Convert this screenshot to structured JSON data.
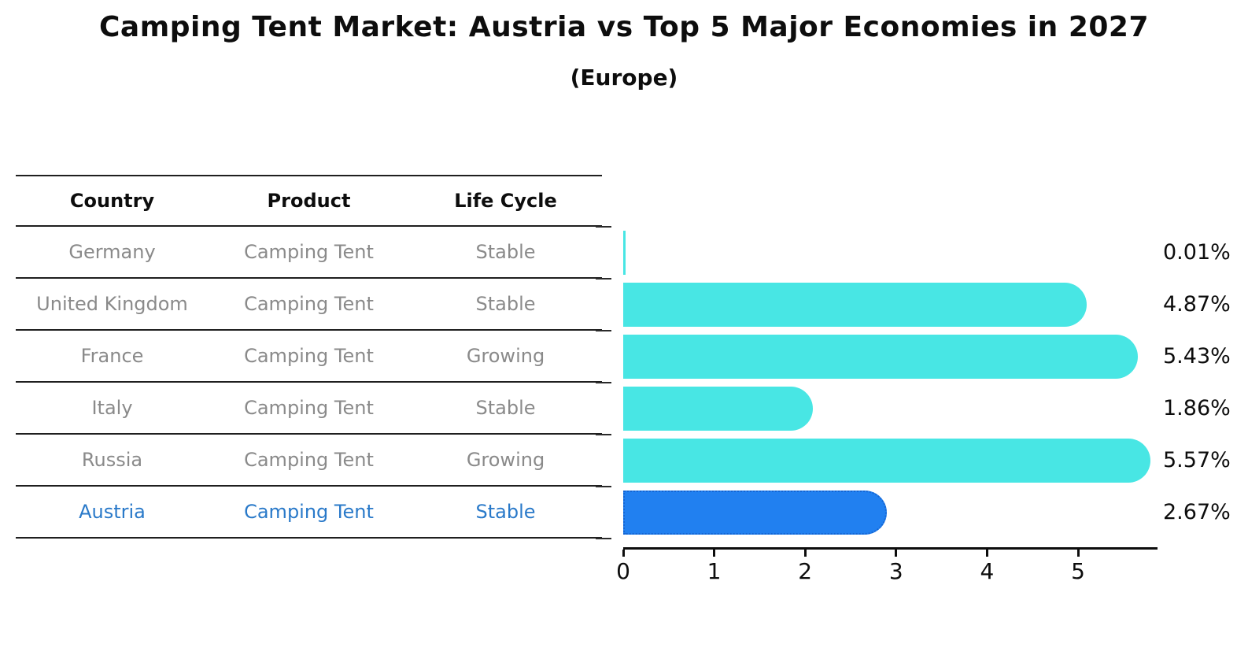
{
  "title": "Camping Tent Market: Austria vs Top 5 Major Economies in 2027",
  "subtitle": "(Europe)",
  "table": {
    "headers": [
      "Country",
      "Product",
      "Life Cycle"
    ],
    "rows": [
      {
        "country": "Germany",
        "product": "Camping Tent",
        "life_cycle": "Stable",
        "highlighted": false
      },
      {
        "country": "United Kingdom",
        "product": "Camping Tent",
        "life_cycle": "Stable",
        "highlighted": false
      },
      {
        "country": "France",
        "product": "Camping Tent",
        "life_cycle": "Growing",
        "highlighted": false
      },
      {
        "country": "Italy",
        "product": "Camping Tent",
        "life_cycle": "Stable",
        "highlighted": false
      },
      {
        "country": "Russia",
        "product": "Camping Tent",
        "life_cycle": "Growing",
        "highlighted": false
      },
      {
        "country": "Austria",
        "product": "Camping Tent",
        "life_cycle": "Stable",
        "highlighted": true
      }
    ]
  },
  "chart_data": {
    "type": "bar",
    "orientation": "horizontal",
    "title": "Camping Tent Market: Austria vs Top 5 Major Economies in 2027",
    "subtitle": "(Europe)",
    "categories": [
      "Germany",
      "United Kingdom",
      "France",
      "Italy",
      "Russia",
      "Austria"
    ],
    "values": [
      0.01,
      4.87,
      5.43,
      1.86,
      5.57,
      2.67
    ],
    "value_labels": [
      "0.01%",
      "4.87%",
      "5.43%",
      "1.86%",
      "5.57%",
      "2.67%"
    ],
    "unit": "percent",
    "xlabel": "",
    "ylabel": "",
    "x_ticks": [
      0,
      1,
      2,
      3,
      4,
      5
    ],
    "xlim": [
      0,
      5.86
    ],
    "grid": false,
    "legend": false,
    "highlight_index": 5
  },
  "colors": {
    "bar_color": "#48e6e4",
    "highlight_bar_color": "#2180f0",
    "highlight_border_color": "#1565d2",
    "highlight_text_color": "#2979c9",
    "row_text_color": "#8a8a8a",
    "axis_color": "#0d0d0d"
  }
}
